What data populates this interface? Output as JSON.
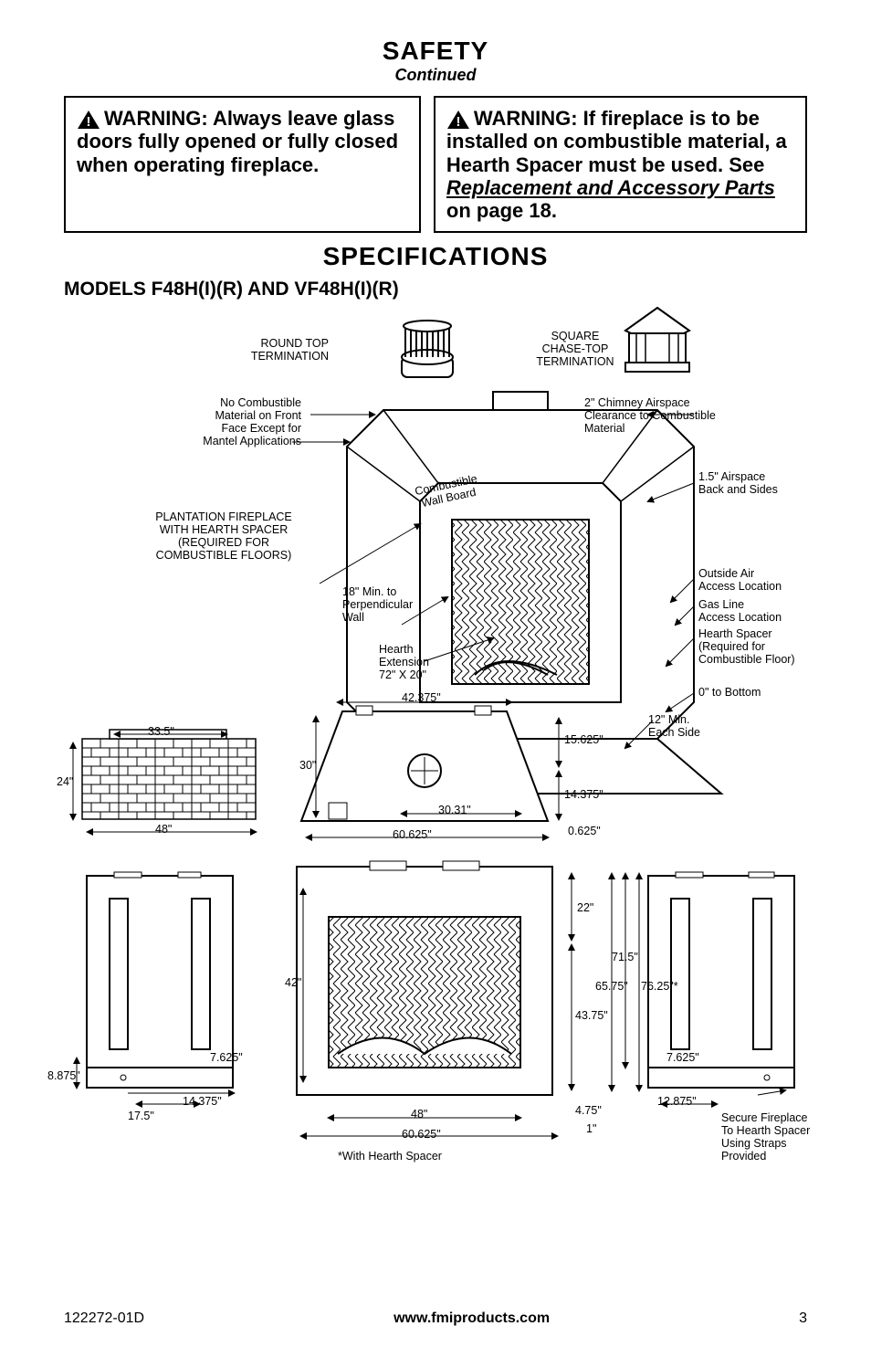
{
  "page": {
    "safety_heading": "SAFETY",
    "continued": "Continued",
    "specs_heading": "SPECIFICATIONS",
    "models_line": "MODELS F48H(I)(R) AND VF48H(I)(R)"
  },
  "warnings": {
    "left": "WARNING: Always leave glass doors fully opened or fully closed when operating fireplace.",
    "right_a": "WARNING: If fireplace is to be installed on combustible material, a Hearth Spacer must be used. See ",
    "right_link": "Replacement and Accessory Parts",
    "right_b": " on page 18."
  },
  "footer": {
    "doc": "122272-01D",
    "url": "www.fmiproducts.com",
    "page_no": "3"
  },
  "labels": {
    "round_top": "ROUND TOP\nTERMINATION",
    "square_top": "SQUARE\nCHASE-TOP\nTERMINATION",
    "no_comb": "No Combustible\nMaterial on Front\nFace Except for\nMantel Applications",
    "chimney_air": "2\" Chimney Airspace\nClearance to Combustible\nMaterial",
    "airspace": "1.5\" Airspace\nBack and Sides",
    "comb_wall": "Combustible\nWall Board",
    "plantation": "PLANTATION FIREPLACE\nWITH HEARTH SPACER\n(REQUIRED FOR\nCOMBUSTIBLE FLOORS)",
    "min_wall": "18\" Min. to\nPerpendicular\nWall",
    "hearth_ext": "Hearth\nExtension\n72\" X 20\"",
    "outside_air": "Outside Air\nAccess Location",
    "gas_line": "Gas Line\nAccess Location",
    "hearth_spacer": "Hearth Spacer\n(Required for\nCombustible Floor)",
    "zero_bottom": "0\" to Bottom",
    "twelve_min": "12\" Min.\nEach Side",
    "with_spacer": "*With Hearth Spacer",
    "secure": "Secure Fireplace\nTo Hearth Spacer\nUsing Straps\nProvided"
  },
  "dims": {
    "d33_5": "33.5\"",
    "d24": "24\"",
    "d48a": "48\"",
    "d42_375": "42.375\"",
    "d30": "30\"",
    "d15_625": "15.625\"",
    "d14_375a": "14.375\"",
    "d30_31": "30.31\"",
    "d60_625a": "60.625\"",
    "d0_625": "0.625\"",
    "d22": "22\"",
    "d71_5": "71.5\"",
    "d65_75": "65.75\"",
    "d76_25": "76.25\"*",
    "d43_75": "43.75\"",
    "d42": "42\"",
    "d7_625a": "7.625\"",
    "d7_625b": "7.625\"",
    "d8_875": "8.875\"",
    "d17_5": "17.5\"",
    "d14_375b": "14.375\"",
    "d48b": "48\"",
    "d60_625b": "60.625\"",
    "d4_75": "4.75\"",
    "d1": "1\"",
    "d12_875": "12.875\""
  },
  "style": {
    "heading_size": 28,
    "sub_size": 18,
    "warn_size": 22,
    "diagram_font": 12.5,
    "colors": {
      "bg": "#ffffff",
      "fg": "#000000",
      "border": "#000000"
    }
  }
}
